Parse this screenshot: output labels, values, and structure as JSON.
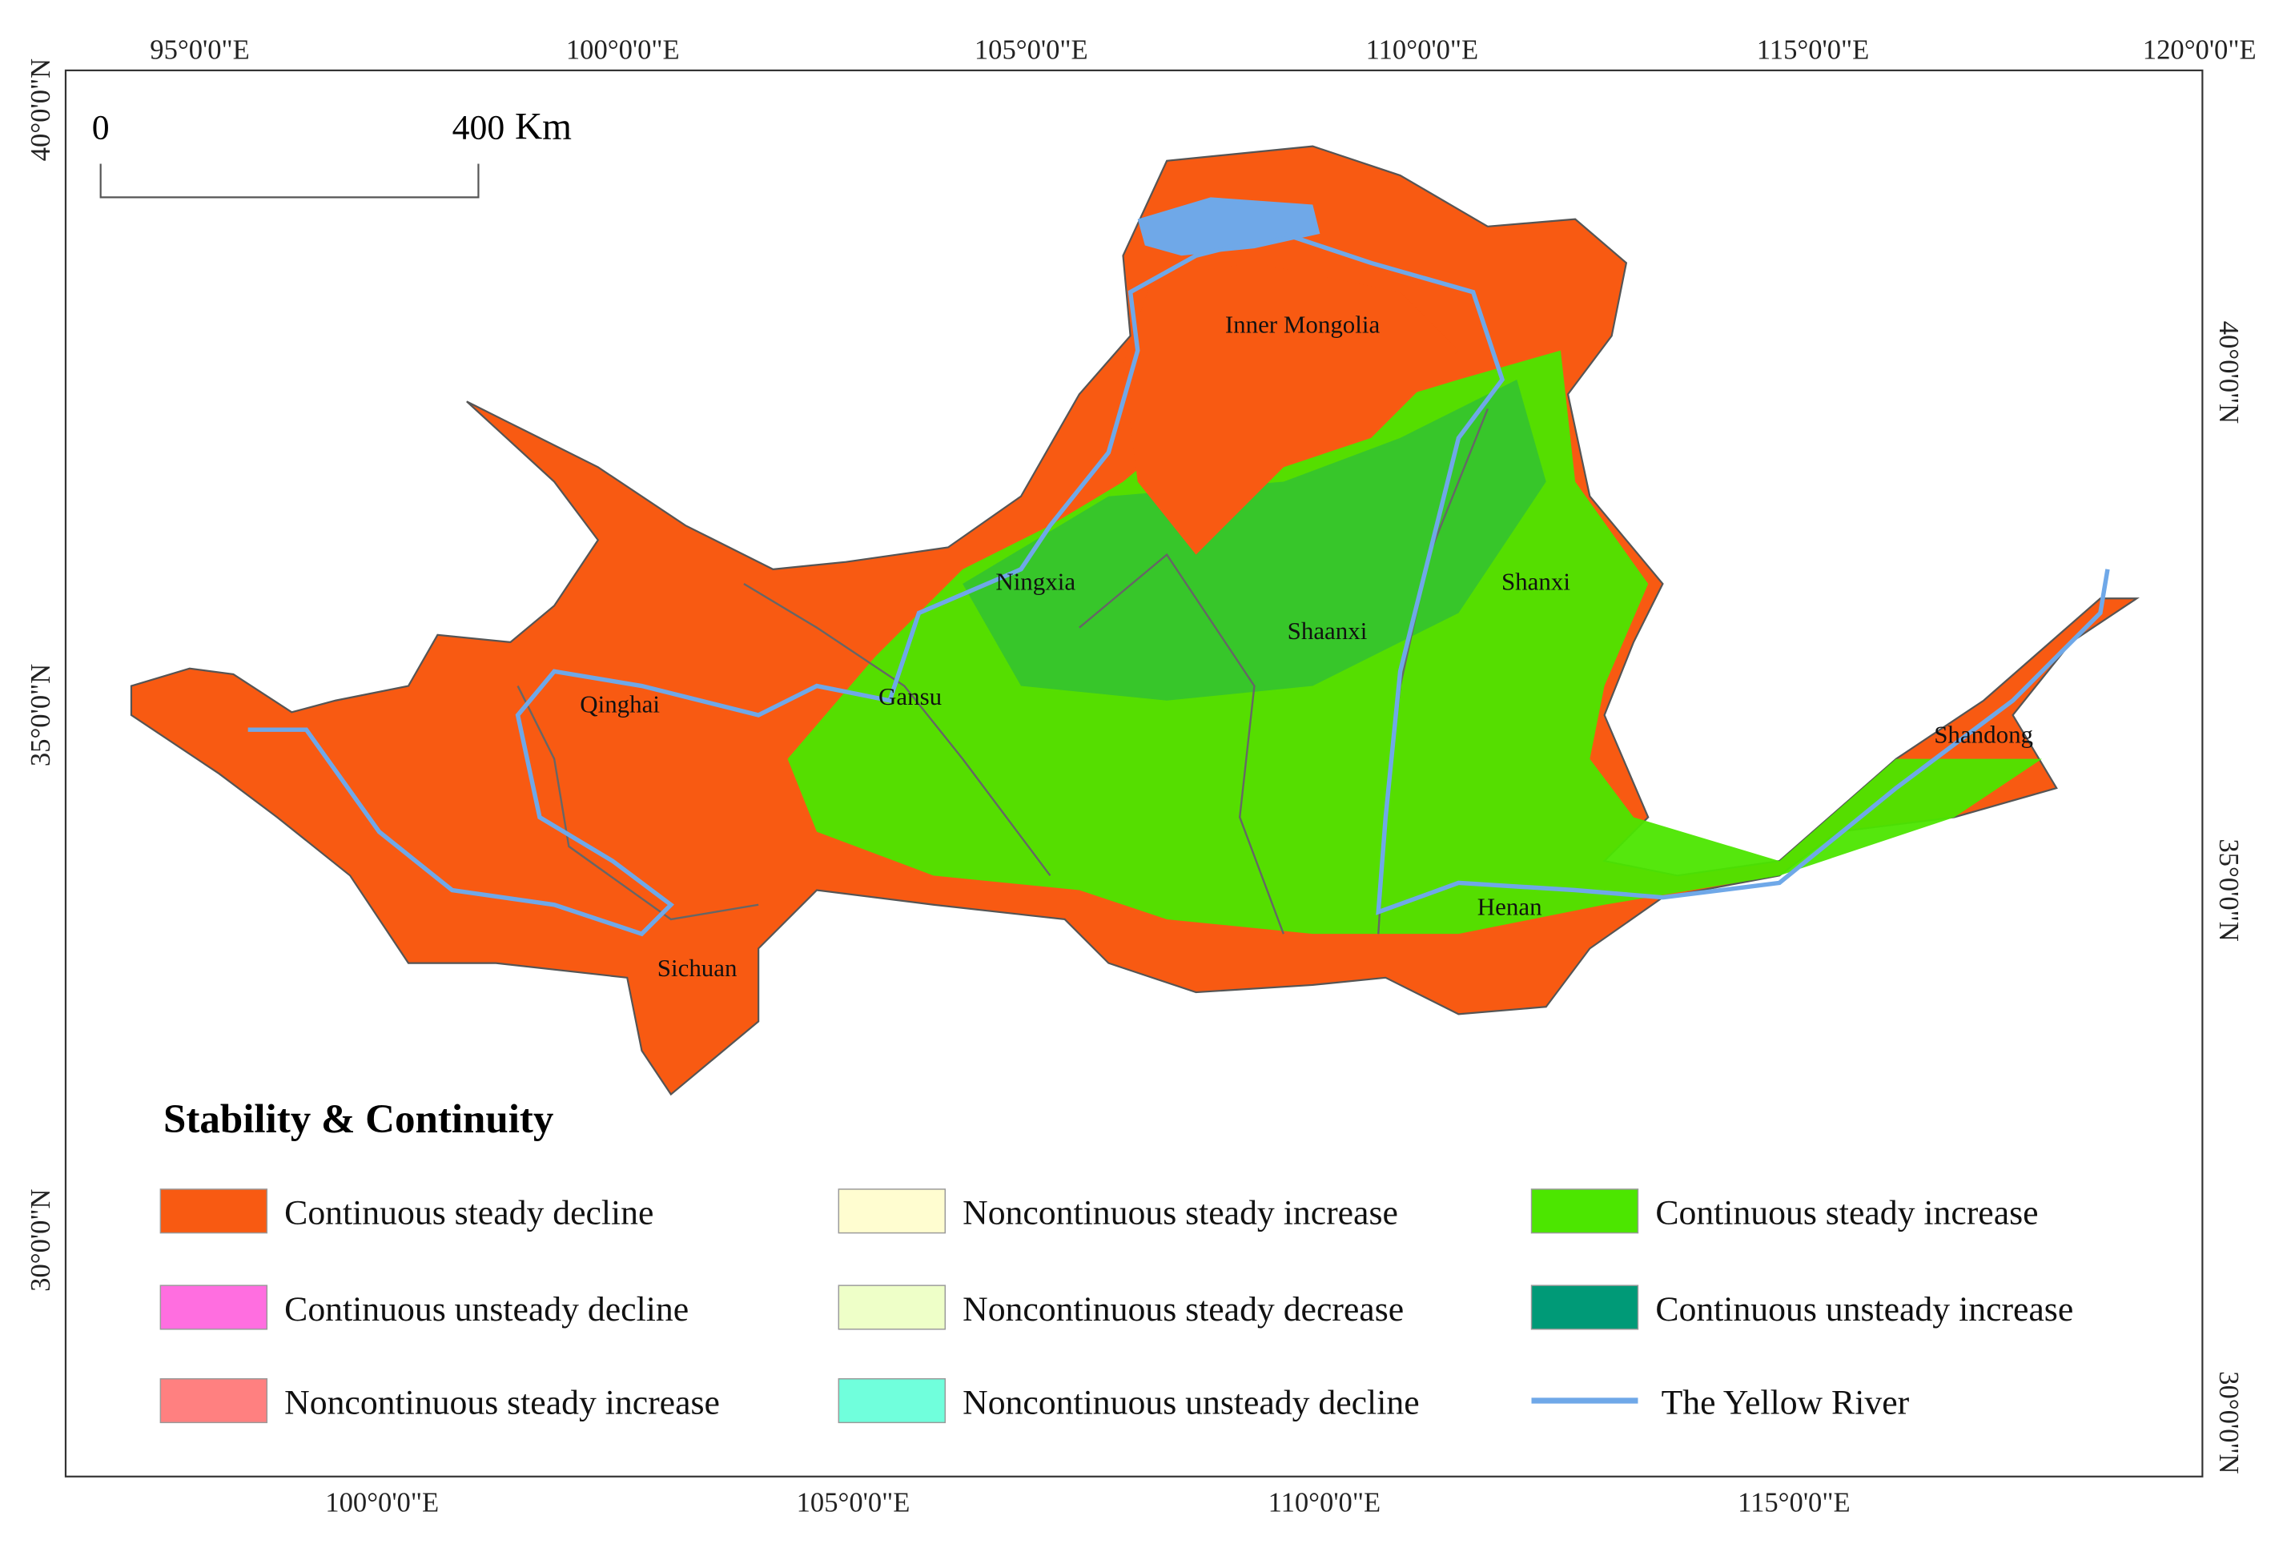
{
  "map": {
    "top_ticks": [
      "95°0'0\"E",
      "100°0'0\"E",
      "105°0'0\"E",
      "110°0'0\"E",
      "115°0'0\"E",
      "120°0'0\"E"
    ],
    "bottom_ticks": [
      "100°0'0\"E",
      "105°0'0\"E",
      "110°0'0\"E",
      "115°0'0\"E"
    ],
    "left_ticks": [
      "40°0'0\"N",
      "35°0'0\"N",
      "30°0'0\"N"
    ],
    "right_ticks": [
      "40°0'0\"N",
      "35°0'0\"N",
      "30°0'0\"N"
    ],
    "scale_bar": {
      "start": "0",
      "end": "400",
      "unit": "Km"
    },
    "provinces": [
      "Inner Mongolia",
      "Ningxia",
      "Shanxi",
      "Shaanxi",
      "Qinghai",
      "Gansu",
      "Shandong",
      "Henan",
      "Sichuan"
    ],
    "legend": {
      "title": "Stability & Continuity",
      "items": [
        {
          "label": "Continuous steady decline",
          "color": "#f85a12"
        },
        {
          "label": "Continuous unsteady decline",
          "color": "#ff6ee0"
        },
        {
          "label": "Noncontinuous steady increase",
          "color": "#ff8080"
        },
        {
          "label": "Noncontinuous steady increase",
          "color": "#fffdd0"
        },
        {
          "label": "Noncontinuous steady decrease",
          "color": "#eeffc8"
        },
        {
          "label": "Noncontinuous unsteady decline",
          "color": "#70ffdc"
        },
        {
          "label": "Continuous steady increase",
          "color": "#4ce600"
        },
        {
          "label": "Continuous unsteady increase",
          "color": "#009a77"
        },
        {
          "label": "The Yellow River",
          "color": "#6fa8e8"
        }
      ]
    }
  }
}
